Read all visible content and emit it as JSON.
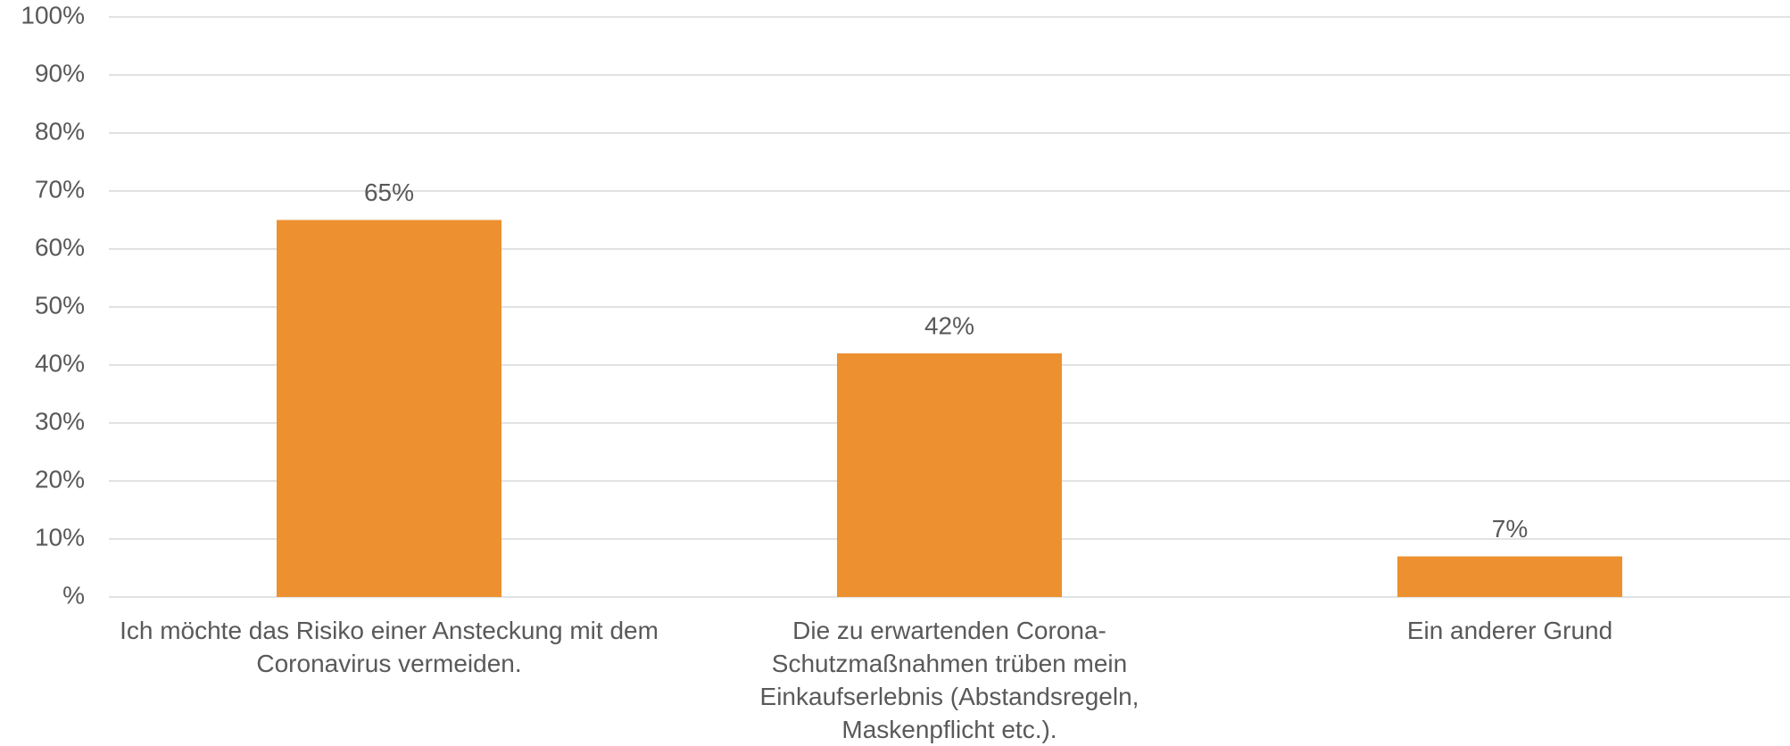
{
  "chart_data": {
    "type": "bar",
    "categories": [
      "Ich möchte das Risiko einer Ansteckung mit dem Coronavirus vermeiden.",
      "Die zu erwartenden Corona-Schutzmaßnahmen trüben mein Einkaufserlebnis (Abstandsregeln, Maskenpflicht etc.).",
      "Ein anderer Grund"
    ],
    "values": [
      65,
      42,
      7
    ],
    "value_labels": [
      "65%",
      "42%",
      "7%"
    ],
    "color": "#ed9130",
    "ylim": [
      0,
      100
    ],
    "yticks": [
      {
        "value": 0,
        "label": "%"
      },
      {
        "value": 10,
        "label": "10%"
      },
      {
        "value": 20,
        "label": "20%"
      },
      {
        "value": 30,
        "label": "30%"
      },
      {
        "value": 40,
        "label": "40%"
      },
      {
        "value": 50,
        "label": "50%"
      },
      {
        "value": 60,
        "label": "60%"
      },
      {
        "value": 70,
        "label": "70%"
      },
      {
        "value": 80,
        "label": "80%"
      },
      {
        "value": 90,
        "label": "90%"
      },
      {
        "value": 100,
        "label": "100%"
      }
    ],
    "grid": true
  }
}
